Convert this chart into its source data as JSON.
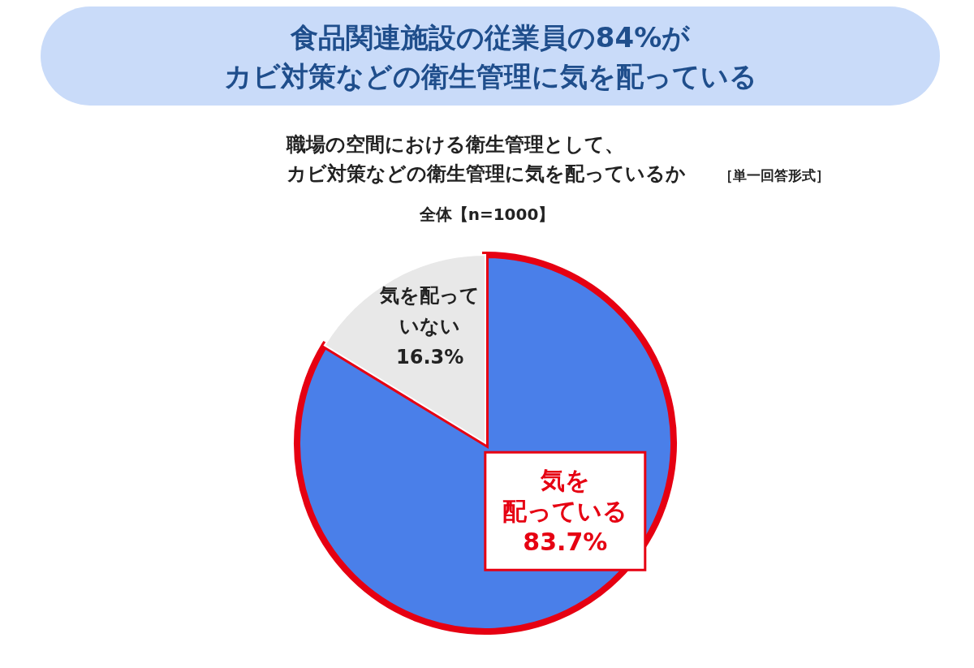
{
  "chart_data": {
    "type": "pie",
    "title": "食品関連施設の従業員の84%がカビ対策などの衛生管理に気を配っている",
    "subtitle": "職場の空間における衛生管理として、カビ対策などの衛生管理に気を配っているか",
    "value_labels": [
      "83.7%",
      "16.3%"
    ],
    "annotations": [
      "［単一回答形式］",
      "全体【n=1000】"
    ],
    "categories": [
      "気を配っている",
      "気を配っていない"
    ],
    "values": [
      83.7,
      16.3
    ],
    "colors": [
      "#4a7fe9",
      "#e8e8e8"
    ],
    "data_labels": true,
    "legend": false
  }
}
